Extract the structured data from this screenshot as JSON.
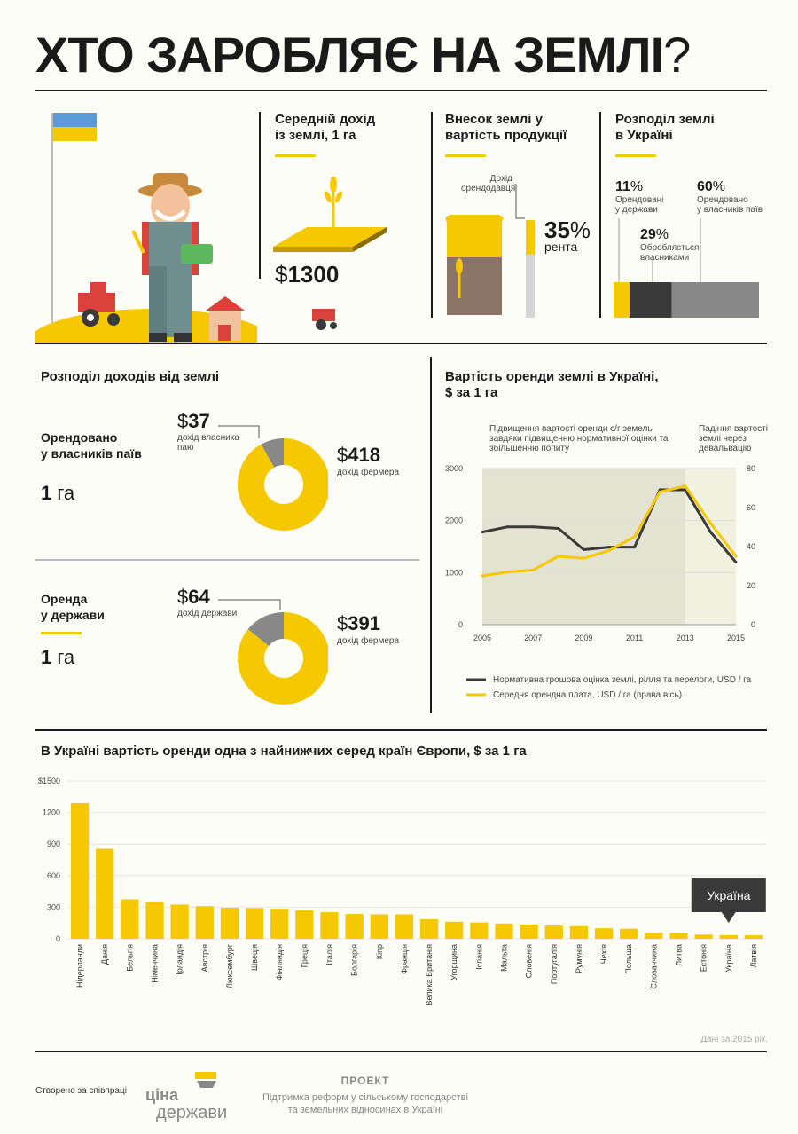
{
  "title": {
    "main": "ХТО ЗАРОБЛЯЄ НА ЗЕМЛІ",
    "mark": "?"
  },
  "colors": {
    "yellow": "#f5c800",
    "dark": "#3a3a3a",
    "gray": "#888888",
    "light_gray": "#c8c8c8",
    "bg": "#fdfdf8"
  },
  "income": {
    "title_l1": "Середній дохід",
    "title_l2": "із землі, 1 га",
    "currency": "$",
    "value": "1300"
  },
  "land_share": {
    "title_l1": "Внесок землі у",
    "title_l2": "вартість продукції",
    "label_l1": "Дохід",
    "label_l2": "орендодавця",
    "percent": "35",
    "percent_sign": "%",
    "caption": "рента",
    "share_value": 35
  },
  "distribution": {
    "title_l1": "Розподіл землі",
    "title_l2": "в Україні",
    "state": {
      "value": "11",
      "sign": "%",
      "l1": "Орендовані",
      "l2": "у держави",
      "share": 11
    },
    "owners_cultivated": {
      "value": "29",
      "sign": "%",
      "l1": "Обробляється",
      "l2": "власниками",
      "share": 29
    },
    "owners_leased": {
      "value": "60",
      "sign": "%",
      "l1": "Орендовано",
      "l2": "у власників паїв",
      "share": 60
    }
  },
  "revenue_split": {
    "title": "Розподіл доходів від землі",
    "case1": {
      "title_l1": "Орендовано",
      "title_l2": "у власників паїв",
      "area_num": "1",
      "area_unit": "га",
      "owner_cur": "$",
      "owner_value": "37",
      "owner_l1": "дохід власника",
      "owner_l2": "паю",
      "farmer_cur": "$",
      "farmer_value": "418",
      "farmer_label": "дохід фермера",
      "owner_amount": 37,
      "farmer_amount": 418
    },
    "case2": {
      "title_l1": "Оренда",
      "title_l2": "у держави",
      "area_num": "1",
      "area_unit": "га",
      "owner_cur": "$",
      "owner_value": "64",
      "owner_l1": "дохід держави",
      "farmer_cur": "$",
      "farmer_value": "391",
      "farmer_label": "дохід фермера",
      "owner_amount": 64,
      "farmer_amount": 391
    }
  },
  "rent_chart": {
    "title_l1": "Вартість оренди землі в Україні,",
    "title_l2": "$ за 1 га",
    "note_left": [
      "Підвищення вартості оренди с/г земель",
      "завдяки підвищенню нормативної оцінки та",
      "збільшенню попиту"
    ],
    "note_right": [
      "Падіння вартості",
      "землі через",
      "девальвацію"
    ],
    "legend_normative": "Нормативна грошова оцінка землі, рілля та перелоги, USD / га",
    "legend_rent": "Середня орендна плата, USD / га (права вісь)"
  },
  "europe": {
    "title": "В Україні вартість оренди одна з найнижчих серед країн Європи, $ за 1 га",
    "callout": "Україна",
    "source": "Дані за 2015 рік.",
    "first_tick_prefix": "$"
  },
  "chart_data": [
    {
      "type": "line",
      "x": [
        2005,
        2006,
        2007,
        2008,
        2009,
        2010,
        2011,
        2012,
        2013,
        2014,
        2015
      ],
      "x_ticks": [
        "2005",
        "2007",
        "2009",
        "2011",
        "2013",
        "2015"
      ],
      "ylim": [
        0,
        3000
      ],
      "y_ticks": [
        "0",
        "1000",
        "2000",
        "3000"
      ],
      "y2lim": [
        0,
        80
      ],
      "y2_ticks": [
        "0",
        "20",
        "40",
        "60",
        "80"
      ],
      "shaded_ranges": [
        [
          2005,
          2013
        ],
        [
          2013,
          2015
        ]
      ],
      "series": [
        {
          "name": "Нормативна грошова оцінка землі, рілля та перелоги, USD / га",
          "axis": "left",
          "color": "#3a3a3a",
          "values": [
            1780,
            1880,
            1880,
            1850,
            1440,
            1490,
            1490,
            2590,
            2590,
            1780,
            1200
          ]
        },
        {
          "name": "Середня орендна плата, USD / га (права вісь)",
          "axis": "right",
          "color": "#f5c800",
          "values": [
            25,
            27,
            28,
            35,
            34,
            38,
            45,
            68,
            71,
            52,
            35
          ]
        }
      ]
    },
    {
      "type": "bar",
      "title": "В Україні вартість оренди одна з найнижчих серед країн Європи, $ за 1 га",
      "categories": [
        "Нідерланди",
        "Данія",
        "Бельгія",
        "Німеччина",
        "Ірландія",
        "Австрія",
        "Люксембург",
        "Швеція",
        "Фінляндія",
        "Греція",
        "Італія",
        "Болгарія",
        "Кіпр",
        "Франція",
        "Велика Британія",
        "Угорщина",
        "Іспанія",
        "Мальта",
        "Словенія",
        "Португалія",
        "Румунія",
        "Чехія",
        "Польща",
        "Словаччина",
        "Литва",
        "Естонія",
        "Україна",
        "Латвія"
      ],
      "values": [
        1290,
        855,
        375,
        352,
        325,
        310,
        295,
        292,
        285,
        270,
        252,
        235,
        232,
        232,
        185,
        162,
        155,
        145,
        135,
        125,
        120,
        100,
        95,
        60,
        55,
        40,
        35,
        33
      ],
      "ylim": [
        0,
        1500
      ],
      "y_ticks": [
        "1500",
        "1200",
        "900",
        "600",
        "300",
        "0"
      ],
      "highlight": "Україна"
    }
  ]
}
